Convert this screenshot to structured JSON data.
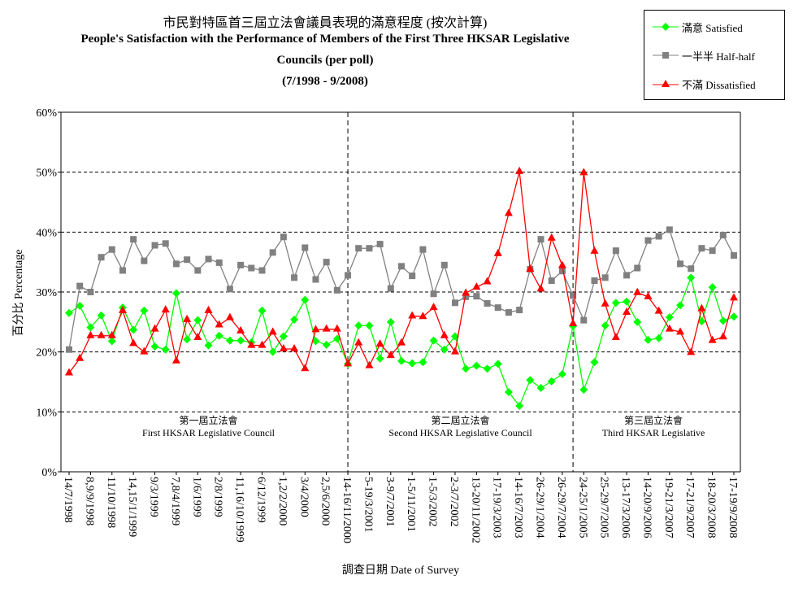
{
  "chart_data": {
    "type": "line",
    "title": "市民對特區首三屆立法會議員表現的滿意程度 (按次計算)",
    "subtitle": [
      "People's Satisfaction with the Performance of Members of the First Three HKSAR Legislative",
      "Councils (per poll)",
      "(7/1998 - 9/2008)"
    ],
    "xlabel": "調查日期 Date of Survey",
    "ylabel": "百分比 Percentage",
    "ylim": [
      0,
      60
    ],
    "yticks": [
      "0%",
      "10%",
      "20%",
      "30%",
      "40%",
      "50%",
      "60%"
    ],
    "grid": "horizontal dashed",
    "legend_position": "top-right",
    "x_tick_labels": [
      "14/7/1998",
      "8,9/9/1998",
      "11/10/1998",
      "14,15/1/1999",
      "9/3/1999",
      "7,8/4/1999",
      "1/6/1999",
      "2/8/1999",
      "11,16/10/1999",
      "6/12/1999",
      "1,2/2/2000",
      "3/4/2000",
      "2,5/6/2000",
      "14-16/11/2000",
      "5-19/3/2001",
      "3-9/7/2001",
      "1-5/11/2001",
      "1-5/3/2002",
      "2-3/7/2002",
      "13-20/11/2002",
      "17-19/3/2003",
      "14-16/7/2003",
      "26-29/1/2004",
      "26-29/7/2004",
      "24-25/1/2005",
      "25-29/7/2005",
      "13-17/3/2006",
      "14-20/9/2006",
      "19-21/3/2007",
      "17-21/9/2007",
      "18-20/3/2008",
      "17-19/9/2008"
    ],
    "x_tick_every": 2,
    "divider_after_points": [
      26,
      47
    ],
    "periods": [
      {
        "zh": "第一屆立法會",
        "en": "First HKSAR Legislative Council"
      },
      {
        "zh": "第二屆立法會",
        "en": "Second HKSAR Legislative Council"
      },
      {
        "zh": "第三屆立法會",
        "en": "Third HKSAR Legislative"
      }
    ],
    "series": [
      {
        "name": "滿意 Satisfied",
        "color": "#00ff00",
        "marker": "diamond",
        "values": [
          26.5,
          27.7,
          24.1,
          26.1,
          21.8,
          27.4,
          23.7,
          26.9,
          20.9,
          20.4,
          29.8,
          22.1,
          25.3,
          21.1,
          22.7,
          21.9,
          21.9,
          21.6,
          26.9,
          20.0,
          22.6,
          25.4,
          28.7,
          21.8,
          21.2,
          22.2,
          18.0,
          24.4,
          24.4,
          18.9,
          25.0,
          18.5,
          18.1,
          18.3,
          21.9,
          20.4,
          22.6,
          17.2,
          17.7,
          17.2,
          18.0,
          13.3,
          11.0,
          15.3,
          14.0,
          15.1,
          16.3,
          24.3,
          13.7,
          18.3,
          24.4,
          28.2,
          28.4,
          25.0,
          22.0,
          22.3,
          25.8,
          27.8,
          32.4,
          25.1,
          30.8,
          25.2,
          25.9
        ]
      },
      {
        "name": "一半半 Half-half",
        "color": "#808080",
        "marker": "square",
        "values": [
          20.4,
          31.0,
          30.0,
          35.8,
          37.1,
          33.6,
          38.8,
          35.2,
          37.8,
          38.1,
          34.7,
          35.4,
          33.6,
          35.5,
          34.9,
          30.5,
          34.5,
          34.0,
          33.6,
          36.6,
          39.2,
          32.4,
          37.4,
          32.1,
          35.0,
          30.3,
          32.8,
          37.3,
          37.3,
          38.0,
          30.6,
          34.3,
          32.7,
          37.1,
          29.7,
          34.5,
          28.2,
          29.2,
          29.3,
          28.1,
          27.4,
          26.6,
          27.0,
          33.8,
          38.8,
          31.9,
          33.5,
          29.4,
          25.3,
          31.9,
          32.4,
          36.9,
          32.8,
          34.0,
          38.6,
          39.3,
          40.4,
          34.7,
          33.9,
          37.3,
          36.9,
          39.5,
          36.1
        ]
      },
      {
        "name": "不滿 Dissatisfied",
        "color": "#ff0000",
        "marker": "triangle",
        "values": [
          16.5,
          18.9,
          22.7,
          22.7,
          22.7,
          26.9,
          21.4,
          20.0,
          23.8,
          27.0,
          18.5,
          25.4,
          22.4,
          26.9,
          24.5,
          25.7,
          23.5,
          21.1,
          21.1,
          23.3,
          20.5,
          20.5,
          17.2,
          23.7,
          23.8,
          23.8,
          18.0,
          21.5,
          17.7,
          21.3,
          19.4,
          21.5,
          26.0,
          25.9,
          27.4,
          22.7,
          20.0,
          29.8,
          30.8,
          31.7,
          36.4,
          43.1,
          50.1,
          33.8,
          30.5,
          39.0,
          34.4,
          24.7,
          49.9,
          36.8,
          28.0,
          22.4,
          26.6,
          29.9,
          29.2,
          26.8,
          23.8,
          23.3,
          19.9,
          27.2,
          21.9,
          22.5,
          29.0
        ]
      }
    ]
  }
}
